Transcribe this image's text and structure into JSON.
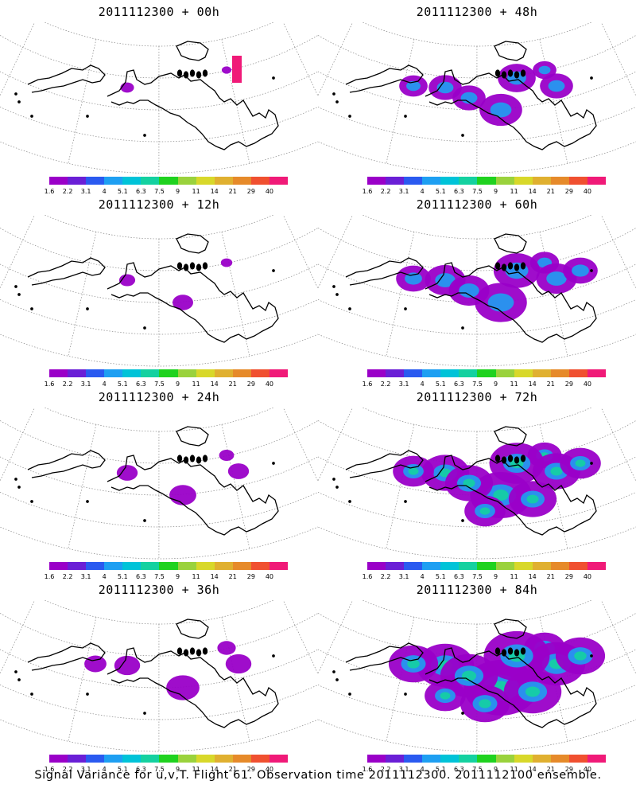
{
  "panels": [
    {
      "title": "2011112300 + 00h",
      "intensity": 0.05
    },
    {
      "title": "2011112300 + 48h",
      "intensity": 0.45
    },
    {
      "title": "2011112300 + 12h",
      "intensity": 0.1
    },
    {
      "title": "2011112300 + 60h",
      "intensity": 0.6
    },
    {
      "title": "2011112300 + 24h",
      "intensity": 0.2
    },
    {
      "title": "2011112300 + 72h",
      "intensity": 0.75
    },
    {
      "title": "2011112300 + 36h",
      "intensity": 0.3
    },
    {
      "title": "2011112300 + 84h",
      "intensity": 0.95
    }
  ],
  "colorbar": {
    "colors": [
      "#9a00c8",
      "#6a1fd6",
      "#2a5af0",
      "#1e9ff2",
      "#00c3d8",
      "#14d1a0",
      "#1fd21f",
      "#9ad23c",
      "#d8d82a",
      "#e0b030",
      "#e68a2a",
      "#f05030",
      "#f01a78"
    ],
    "labels": [
      "1.6",
      "2.2",
      "3.1",
      "4",
      "5.1",
      "6.3",
      "7.5",
      "9",
      "11",
      "14",
      "21",
      "29",
      "40"
    ]
  },
  "footer": "Signal Variance for u,v,T. Flight 61. Observation time 2011112300. 2011112100 ensemble."
}
